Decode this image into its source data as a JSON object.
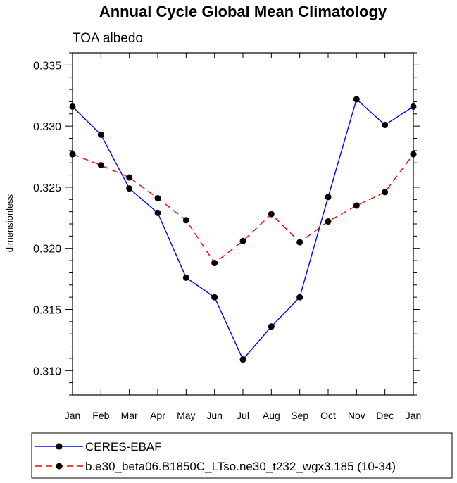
{
  "chart_data": {
    "type": "line",
    "title": "Annual Cycle Global Mean Climatology",
    "subtitle": "TOA albedo",
    "xlabel": "",
    "ylabel": "dimensionless",
    "categories": [
      "Jan",
      "Feb",
      "Mar",
      "Apr",
      "May",
      "Jun",
      "Jul",
      "Aug",
      "Sep",
      "Oct",
      "Nov",
      "Dec",
      "Jan"
    ],
    "ylim": [
      0.308,
      0.336
    ],
    "yticks": [
      0.31,
      0.315,
      0.32,
      0.325,
      0.33,
      0.335
    ],
    "ytick_labels": [
      "0.310",
      "0.315",
      "0.320",
      "0.325",
      "0.330",
      "0.335"
    ],
    "legend_position": "bottom",
    "series": [
      {
        "name": "CERES-EBAF",
        "color": "#0000ff",
        "dash": "solid",
        "values": [
          0.3316,
          0.3293,
          0.3249,
          0.3229,
          0.3176,
          0.316,
          0.3109,
          0.3136,
          0.316,
          0.3242,
          0.3322,
          0.3301,
          0.3316
        ]
      },
      {
        "name": "b.e30_beta06.B1850C_LTso.ne30_t232_wgx3.185 (10-34)",
        "color": "#ff0000",
        "dash": "dashed",
        "values": [
          0.3277,
          0.3268,
          0.3258,
          0.3241,
          0.3223,
          0.3188,
          0.3206,
          0.3228,
          0.3205,
          0.3222,
          0.3235,
          0.3246,
          0.3277
        ]
      }
    ]
  }
}
